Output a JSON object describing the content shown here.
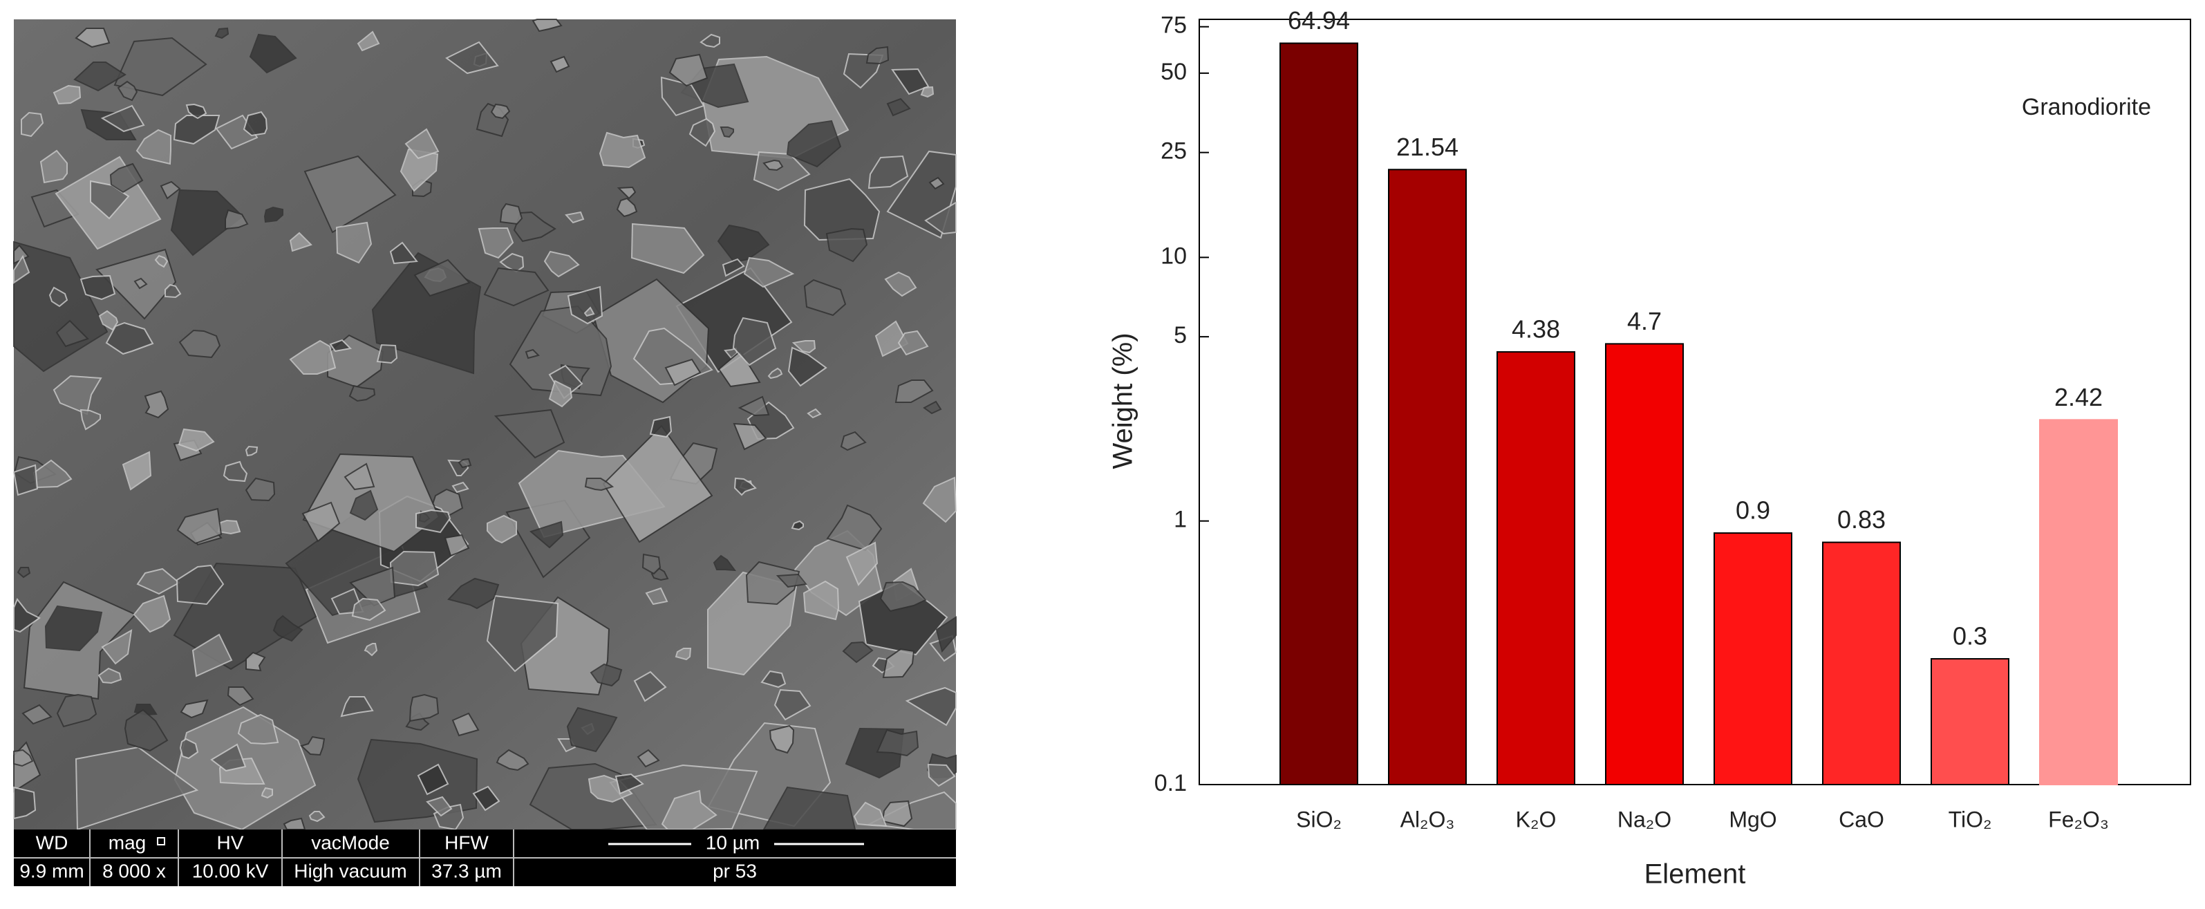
{
  "chart_data": {
    "type": "bar",
    "yscale": "log",
    "ylabel": "Weight (%)",
    "xlabel": "Element",
    "annotation": "Granodiorite",
    "categories": [
      "SiO₂",
      "Al₂O₃",
      "K₂O",
      "Na₂O",
      "MgO",
      "CaO",
      "TiO₂",
      "Fe₂O₃"
    ],
    "values": [
      64.94,
      21.54,
      4.38,
      4.7,
      0.9,
      0.83,
      0.3,
      2.42
    ],
    "colors": [
      "#7a0000",
      "#a50000",
      "#d20000",
      "#f20000",
      "#ff1414",
      "#ff2626",
      "#ff4e4e",
      "#ff9595"
    ],
    "ylim": [
      0.1,
      80
    ],
    "yticks": [
      0.1,
      1,
      5,
      10,
      25,
      50,
      75
    ]
  },
  "sem_image": {
    "header": [
      "WD",
      "mag",
      "HV",
      "vacMode",
      "HFW"
    ],
    "values": [
      "9.9 mm",
      "8 000 x",
      "10.00 kV",
      "High vacuum",
      "37.3 µm"
    ],
    "scale_bar": "10 µm",
    "sample": "pr 53"
  }
}
